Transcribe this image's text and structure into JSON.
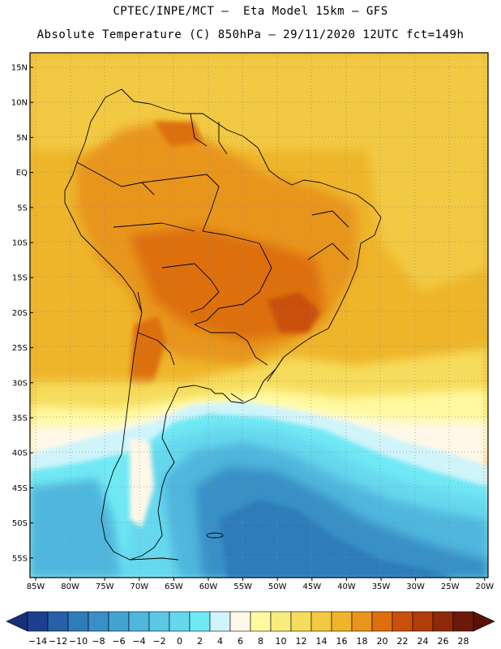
{
  "header": {
    "line1": "CPTEC/INPE/MCT –  Eta Model 15km – GFS",
    "line2": "Absolute Temperature (C) 850hPa – 29/11/2020 12UTC fct=149h"
  },
  "axes": {
    "lat_labels": [
      "15N",
      "10N",
      "5N",
      "EQ",
      "5S",
      "10S",
      "15S",
      "20S",
      "25S",
      "30S",
      "35S",
      "40S",
      "45S",
      "50S",
      "55S"
    ],
    "lon_labels": [
      "85W",
      "80W",
      "75W",
      "70W",
      "65W",
      "60W",
      "55W",
      "50W",
      "45W",
      "40W",
      "35W",
      "30W",
      "25W",
      "20W"
    ]
  },
  "colorbar": {
    "labels": [
      "-14",
      "-12",
      "-10",
      "-8",
      "-6",
      "-4",
      "-2",
      "0",
      "2",
      "4",
      "6",
      "8",
      "10",
      "12",
      "14",
      "16",
      "18",
      "20",
      "22",
      "24",
      "26",
      "28"
    ],
    "colors": [
      "#1e3f8f",
      "#2660a8",
      "#2e7dba",
      "#3890c6",
      "#43a4d2",
      "#4fb6dd",
      "#5bc8e6",
      "#66d8ee",
      "#6fe9f5",
      "#cff4fa",
      "#fff8e8",
      "#fffaa0",
      "#f7ec7e",
      "#f6dc5c",
      "#f2c943",
      "#eeb52a",
      "#e8951a",
      "#dd6f0d",
      "#c9500a",
      "#b23c0a",
      "#8e2a0a",
      "#6b1a0a"
    ],
    "low_color": "#16307a",
    "high_color": "#5a1208"
  }
}
